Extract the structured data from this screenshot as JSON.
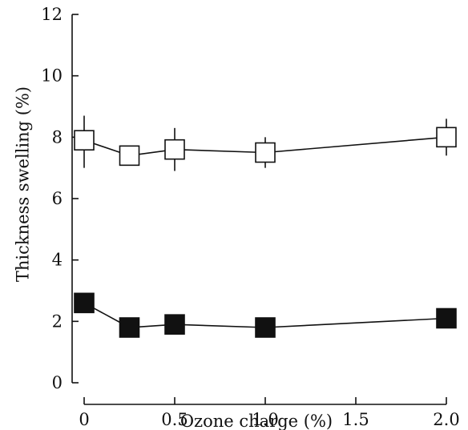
{
  "chart_data": {
    "type": "line",
    "xlabel": "Ozone charge (%)",
    "ylabel": "Thickness swelling (%)",
    "xlim": [
      -0.07,
      2.05
    ],
    "ylim": [
      0,
      12
    ],
    "xticks": [
      0,
      0.5,
      1.0,
      1.5,
      2.0
    ],
    "xtick_labels": [
      "0",
      "0.5",
      "1.0",
      "1.5",
      "2.0"
    ],
    "yticks": [
      0,
      2,
      4,
      6,
      8,
      10,
      12
    ],
    "ytick_labels": [
      "0",
      "2",
      "4",
      "6",
      "8",
      "10",
      "12"
    ],
    "grid": false,
    "series": [
      {
        "marker": "open-square",
        "x": [
          0,
          0.25,
          0.5,
          1.0,
          2.0
        ],
        "y": [
          7.9,
          7.4,
          7.6,
          7.5,
          8.0
        ],
        "err_low": [
          7.0,
          7.3,
          6.9,
          7.0,
          7.4
        ],
        "err_high": [
          8.7,
          7.5,
          8.3,
          8.0,
          8.6
        ]
      },
      {
        "marker": "filled-square",
        "x": [
          0,
          0.25,
          0.5,
          1.0,
          2.0
        ],
        "y": [
          2.6,
          1.8,
          1.9,
          1.8,
          2.1
        ]
      }
    ]
  }
}
